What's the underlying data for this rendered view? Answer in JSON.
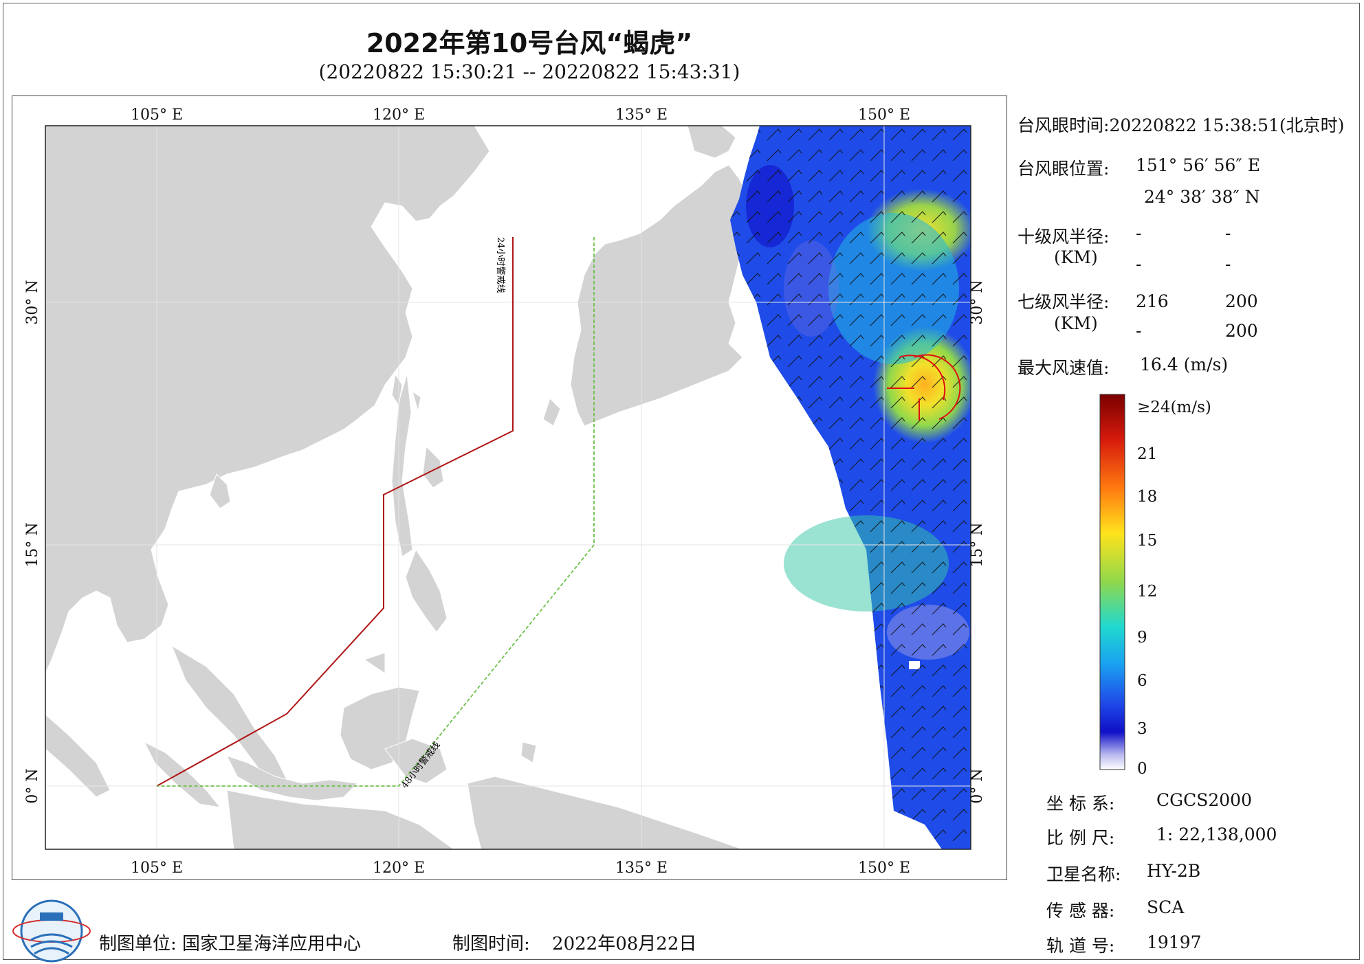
{
  "title": "2022年第10号台风“蝎虎”",
  "subtitle": "(20220822 15:30:21 -- 20220822 15:43:31)",
  "map": {
    "lon_ticks": [
      "105° E",
      "120° E",
      "135° E",
      "150° E"
    ],
    "lat_ticks": [
      "30° N",
      "15° N",
      "0° N"
    ],
    "warning_24h": "24小时警戒线",
    "warning_48h": "48小时警戒线",
    "colors": {
      "land": "#d3d3d3",
      "ocean": "#ffffff",
      "warn24": "#b01515",
      "warn48": "#6cc04a",
      "typhoon_marker": "#e01010"
    }
  },
  "info": {
    "eye_time_label": "台风眼时间:",
    "eye_time_value": "20220822 15:38:51(北京时)",
    "eye_pos_label": "台风眼位置:",
    "eye_lon": "151° 56′ 56″ E",
    "eye_lat": "24° 38′ 38″ N",
    "r10_label": "十级风半径:",
    "r10_km": "(KM)",
    "r10_values": [
      "-",
      "-",
      "-",
      "-"
    ],
    "r7_label": "七级风半径:",
    "r7_km": "(KM)",
    "r7_values": [
      "216",
      "200",
      "-",
      "200"
    ],
    "max_label": "最大风速值:",
    "max_value": "16.4 (m/s)"
  },
  "colorbar": {
    "labels": [
      "≥24(m/s)",
      "21",
      "18",
      "15",
      "12",
      "9",
      "6",
      "3",
      "0"
    ],
    "stops": [
      "#7a0000",
      "#d61a0c",
      "#ff7a10",
      "#ffe21c",
      "#8fd84c",
      "#20d8d0",
      "#1aa0f0",
      "#1f4ce8",
      "#1010c8",
      "#b8b8f0",
      "#ffffff"
    ]
  },
  "meta": {
    "crs_label": "坐 标 系:",
    "crs_value": "CGCS2000",
    "scale_label": "比 例 尺:",
    "scale_value": "1: 22,138,000",
    "sat_label": "卫星名称:",
    "sat_value": "HY-2B",
    "sensor_label": "传 感 器:",
    "sensor_value": "SCA",
    "orbit_label": "轨 道 号:",
    "orbit_value": "19197"
  },
  "footer": {
    "unit_label": "制图单位:",
    "unit_value": "国家卫星海洋应用中心",
    "time_label": "制图时间:",
    "time_value": "2022年08月22日"
  }
}
